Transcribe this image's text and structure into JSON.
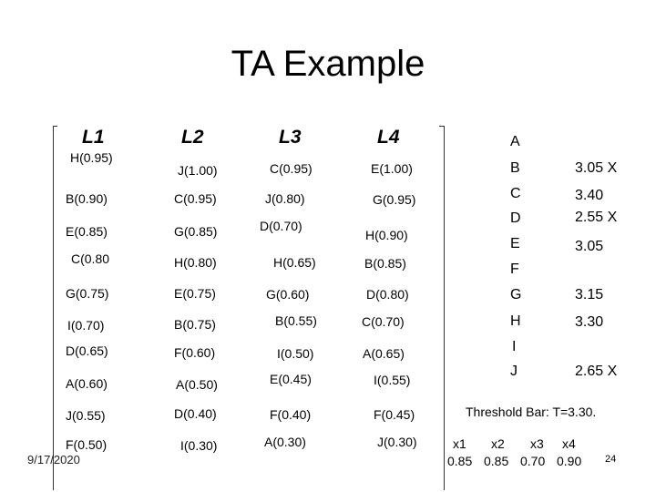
{
  "title": "TA Example",
  "headers": [
    "L1",
    "L2",
    "L3",
    "L4"
  ],
  "lists": {
    "L1": [
      "H(0.95)",
      "B(0.90)",
      "E(0.85)",
      "C(0.80",
      "G(0.75)",
      "I(0.70)",
      "D(0.65)",
      "A(0.60)",
      "J(0.55)",
      "F(0.50)"
    ],
    "L2": [
      "J(1.00)",
      "C(0.95)",
      "G(0.85)",
      "H(0.80)",
      "E(0.75)",
      "B(0.75)",
      "F(0.60)",
      "A(0.50)",
      "D(0.40)",
      "I(0.30)"
    ],
    "L3": [
      "C(0.95)",
      "J(0.80)",
      "D(0.70)",
      "H(0.65)",
      "G(0.60)",
      "B(0.55)",
      "I(0.50)",
      "E(0.45)",
      "F(0.40)",
      "A(0.30)"
    ],
    "L4": [
      "E(1.00)",
      "G(0.95)",
      "H(0.90)",
      "B(0.85)",
      "D(0.80)",
      "C(0.70)",
      "A(0.65)",
      "I(0.55)",
      "F(0.45)",
      "J(0.30)"
    ]
  },
  "results": [
    {
      "object": "A",
      "score": ""
    },
    {
      "object": "B",
      "score": "3.05 X"
    },
    {
      "object": "C",
      "score": "3.40"
    },
    {
      "object": "D",
      "score": "2.55 X"
    },
    {
      "object": "E",
      "score": "3.05"
    },
    {
      "object": "F",
      "score": ""
    },
    {
      "object": "G",
      "score": "3.15"
    },
    {
      "object": "H",
      "score": "3.30"
    },
    {
      "object": "I",
      "score": ""
    },
    {
      "object": "J",
      "score": "2.65 X"
    }
  ],
  "threshold": "Threshold Bar: T=3.30.",
  "xs": {
    "labels": [
      "x1",
      "x2",
      "x3",
      "x4"
    ],
    "values": [
      "0.85",
      "0.85",
      "0.70",
      "0.90"
    ]
  },
  "date": "9/17/2020",
  "page_number": "24"
}
